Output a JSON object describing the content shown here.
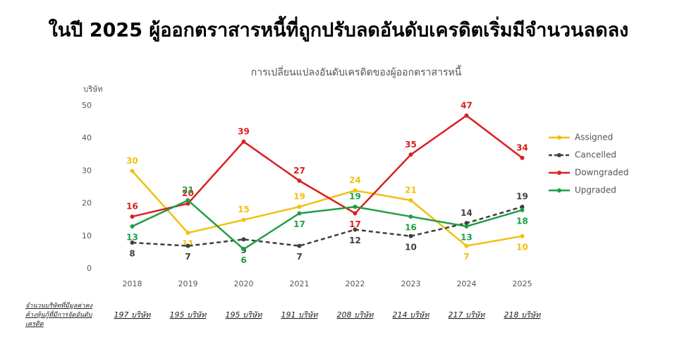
{
  "chart_data": {
    "type": "line",
    "title": "ในปี 2025 ผู้ออกตราสารหนี้ที่ถูกปรับลดอันดับเครดิตเริ่มมีจำนวนลดลง",
    "subtitle": "การเปลี่ยนแปลงอันดับเครดิตของผู้ออกตราสารหนี้",
    "y_label": "บริษัท",
    "categories": [
      "2018",
      "2019",
      "2020",
      "2021",
      "2022",
      "2023",
      "2024",
      "2025"
    ],
    "series": [
      {
        "name": "Assigned",
        "color": "#f2c00f",
        "style": "solid",
        "values": [
          30,
          11,
          15,
          19,
          24,
          21,
          7,
          10
        ]
      },
      {
        "name": "Cancelled",
        "color": "#404040",
        "style": "dashed",
        "values": [
          8,
          7,
          9,
          7,
          12,
          10,
          14,
          19
        ]
      },
      {
        "name": "Downgraded",
        "color": "#d9201f",
        "style": "solid",
        "values": [
          16,
          20,
          39,
          27,
          17,
          35,
          47,
          34
        ]
      },
      {
        "name": "Upgraded",
        "color": "#1f9e45",
        "style": "solid",
        "values": [
          13,
          21,
          6,
          17,
          19,
          16,
          13,
          18
        ]
      }
    ],
    "ylim": [
      0,
      50
    ],
    "yticks": [
      0,
      10,
      20,
      30,
      40,
      50
    ],
    "grid": false,
    "legend": "right",
    "count_label": "จำนวนบริษัทที่มีมูลค่าคงค้างหุ้นกู้ที่มีการจัดอันดับเครดิต",
    "counts": [
      "197 บริษัท",
      "195 บริษัท",
      "195 บริษัท",
      "191 บริษัท",
      "208 บริษัท",
      "214 บริษัท",
      "217 บริษัท",
      "218 บริษัท"
    ]
  }
}
